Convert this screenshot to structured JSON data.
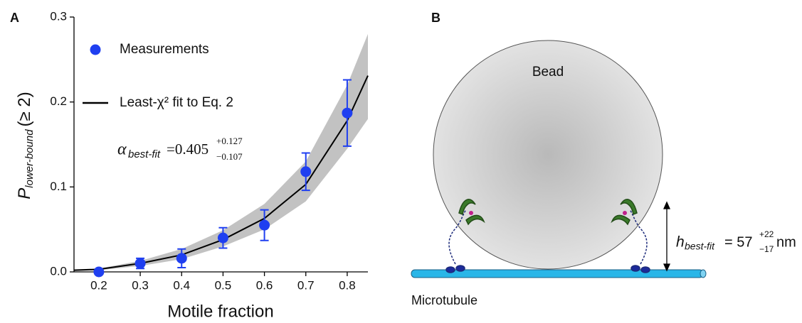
{
  "chart_data": {
    "type": "scatter",
    "panel_label": "A",
    "xlabel": "Motile fraction",
    "ylabel": {
      "main": "P",
      "sub": "lower-bound",
      "tail": "(≥ 2)"
    },
    "xlim": [
      0.14,
      0.85
    ],
    "ylim": [
      0,
      0.3
    ],
    "xticks": [
      0.2,
      0.3,
      0.4,
      0.5,
      0.6,
      0.7,
      0.8
    ],
    "yticks": [
      {
        "value": 0,
        "label": "0.0"
      },
      0.1,
      0.2,
      0.3
    ],
    "series": [
      {
        "name": "Measurements",
        "color": "#1f3ff0",
        "type": "scatter",
        "x": [
          0.2,
          0.3,
          0.4,
          0.5,
          0.6,
          0.7,
          0.8
        ],
        "values": [
          0.0,
          0.01,
          0.016,
          0.04,
          0.055,
          0.118,
          0.187
        ],
        "errors": [
          0.001,
          0.006,
          0.011,
          0.012,
          0.018,
          0.022,
          0.039
        ]
      },
      {
        "name": "Least-χ² fit to Eq. 2",
        "color": "#000000",
        "type": "line",
        "band_color": "#c2c2c2",
        "x": [
          0.14,
          0.2,
          0.3,
          0.4,
          0.5,
          0.6,
          0.7,
          0.8,
          0.85
        ],
        "values": [
          0.002,
          0.003,
          0.01,
          0.02,
          0.038,
          0.063,
          0.103,
          0.178,
          0.231
        ],
        "lower": [
          0.001,
          0.002,
          0.007,
          0.015,
          0.03,
          0.05,
          0.083,
          0.145,
          0.18
        ],
        "upper": [
          0.003,
          0.004,
          0.013,
          0.027,
          0.049,
          0.08,
          0.13,
          0.22,
          0.28
        ]
      }
    ],
    "annotation": {
      "symbol": "α",
      "sub": "best-fit",
      "value": "=0.405",
      "plus": "+0.127",
      "minus": "−0.107"
    }
  },
  "diagram": {
    "panel_label": "B",
    "bead_label": "Bead",
    "microtubule_label": "Microtubule",
    "height_label": {
      "symbol": "h",
      "sub": "best-fit",
      "value": "= 57",
      "plus": "+22",
      "minus": "−17",
      "unit": "nm"
    }
  }
}
